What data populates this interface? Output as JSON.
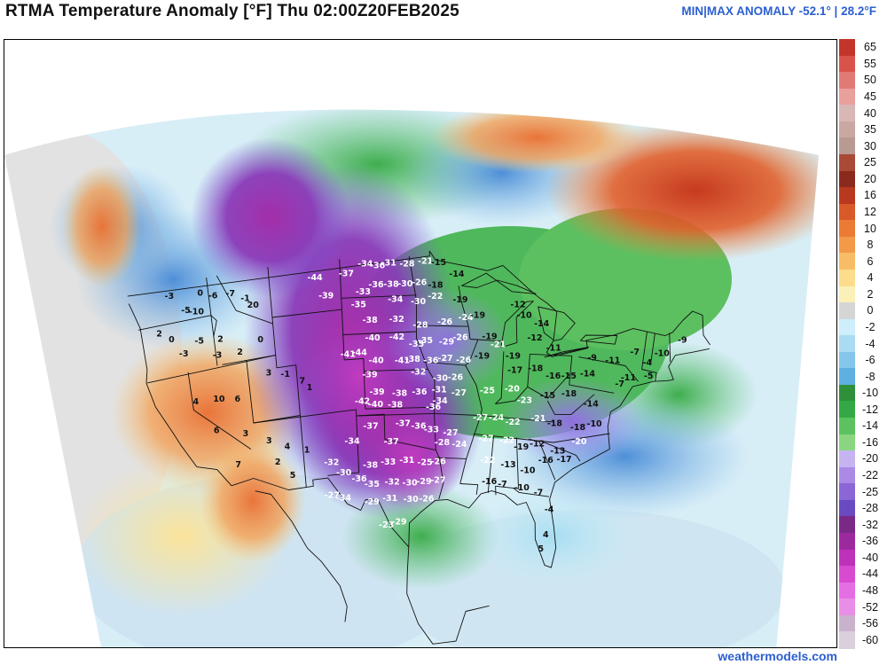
{
  "header": {
    "title": "RTMA Temperature Anomaly [°F]  Thu 02:00Z20FEB2025",
    "minmax": "MIN|MAX ANOMALY -52.1° | 28.2°F"
  },
  "footer": {
    "credit": "weathermodels.com"
  },
  "legend": {
    "labels": [
      "65",
      "55",
      "50",
      "45",
      "40",
      "35",
      "30",
      "25",
      "20",
      "16",
      "12",
      "10",
      "8",
      "6",
      "4",
      "2",
      "0",
      "-2",
      "-4",
      "-6",
      "-8",
      "-10",
      "-12",
      "-14",
      "-16",
      "-20",
      "-22",
      "-25",
      "-28",
      "-32",
      "-36",
      "-40",
      "-44",
      "-48",
      "-52",
      "-56",
      "-60"
    ],
    "colors": [
      "#c2352b",
      "#d9534a",
      "#e07a75",
      "#e8a09c",
      "#d9b7b4",
      "#c9a8a2",
      "#b99a92",
      "#a84a36",
      "#8a2a1d",
      "#b83820",
      "#d75a28",
      "#ec7a35",
      "#f29a48",
      "#f7bd66",
      "#fbdd8c",
      "#fbf0b8",
      "#d5d5d5",
      "#cdeefa",
      "#a9dcf2",
      "#85c7ea",
      "#5fb0df",
      "#2f8f3a",
      "#35a845",
      "#5cc25f",
      "#8ad680",
      "#c6b4f2",
      "#ab8ae6",
      "#8a66d6",
      "#6a4ac0",
      "#7a2a86",
      "#9c2a9e",
      "#bd32b8",
      "#d84ad0",
      "#e46ee2",
      "#e88ee6",
      "#c9b2cc",
      "#d9d0dc"
    ]
  },
  "stations": [
    {
      "v": "-34",
      "lon": -101.5,
      "lat": 48.3
    },
    {
      "v": "-36",
      "lon": -100.3,
      "lat": 48.1
    },
    {
      "v": "-31",
      "lon": -99.2,
      "lat": 48.3
    },
    {
      "v": "-28",
      "lon": -97.4,
      "lat": 48.2
    },
    {
      "v": "-21",
      "lon": -95.6,
      "lat": 48.4
    },
    {
      "v": "-15",
      "lon": -94.3,
      "lat": 48.3
    },
    {
      "v": "-44",
      "lon": -106.5,
      "lat": 47.5
    },
    {
      "v": "-37",
      "lon": -103.4,
      "lat": 47.6
    },
    {
      "v": "-36",
      "lon": -100.5,
      "lat": 46.6
    },
    {
      "v": "-38",
      "lon": -99.0,
      "lat": 46.6
    },
    {
      "v": "-30",
      "lon": -97.6,
      "lat": 46.6
    },
    {
      "v": "-26",
      "lon": -96.2,
      "lat": 46.7
    },
    {
      "v": "-18",
      "lon": -94.6,
      "lat": 46.5
    },
    {
      "v": "-14",
      "lon": -92.5,
      "lat": 47.4
    },
    {
      "v": "-39",
      "lon": -105.5,
      "lat": 46.0
    },
    {
      "v": "-33",
      "lon": -101.8,
      "lat": 46.1
    },
    {
      "v": "-35",
      "lon": -102.3,
      "lat": 45.1
    },
    {
      "v": "-34",
      "lon": -98.6,
      "lat": 45.4
    },
    {
      "v": "-30",
      "lon": -96.3,
      "lat": 45.2
    },
    {
      "v": "-22",
      "lon": -94.6,
      "lat": 45.6
    },
    {
      "v": "-19",
      "lon": -92.1,
      "lat": 45.4
    },
    {
      "v": "-38",
      "lon": -101.2,
      "lat": 43.8
    },
    {
      "v": "-32",
      "lon": -98.5,
      "lat": 43.8
    },
    {
      "v": "-28",
      "lon": -96.1,
      "lat": 43.3
    },
    {
      "v": "-26",
      "lon": -93.6,
      "lat": 43.6
    },
    {
      "v": "-24",
      "lon": -91.5,
      "lat": 44.0
    },
    {
      "v": "-40",
      "lon": -101.0,
      "lat": 42.4
    },
    {
      "v": "-42",
      "lon": -98.5,
      "lat": 42.4
    },
    {
      "v": "-35",
      "lon": -96.5,
      "lat": 41.8
    },
    {
      "v": "-35",
      "lon": -95.6,
      "lat": 42.1
    },
    {
      "v": "-29",
      "lon": -93.4,
      "lat": 42.0
    },
    {
      "v": "-26",
      "lon": -92.0,
      "lat": 42.4
    },
    {
      "v": "-41",
      "lon": -103.6,
      "lat": 41.2
    },
    {
      "v": "-44",
      "lon": -102.4,
      "lat": 41.3
    },
    {
      "v": "-40",
      "lon": -100.7,
      "lat": 40.6
    },
    {
      "v": "-41",
      "lon": -98.0,
      "lat": 40.5
    },
    {
      "v": "-38",
      "lon": -96.9,
      "lat": 40.6
    },
    {
      "v": "-36",
      "lon": -95.0,
      "lat": 40.5
    },
    {
      "v": "-27",
      "lon": -93.5,
      "lat": 40.7
    },
    {
      "v": "-26",
      "lon": -91.6,
      "lat": 40.6
    },
    {
      "v": "-39",
      "lon": -101.4,
      "lat": 39.5
    },
    {
      "v": "-32",
      "lon": -96.3,
      "lat": 39.6
    },
    {
      "v": "-30",
      "lon": -94.0,
      "lat": 39.1
    },
    {
      "v": "-26",
      "lon": -92.4,
      "lat": 39.2
    },
    {
      "v": "-39",
      "lon": -100.7,
      "lat": 38.1
    },
    {
      "v": "-38",
      "lon": -98.3,
      "lat": 37.9
    },
    {
      "v": "-36",
      "lon": -96.2,
      "lat": 38.0
    },
    {
      "v": "-31",
      "lon": -94.1,
      "lat": 38.2
    },
    {
      "v": "-27",
      "lon": -92.0,
      "lat": 38.0
    },
    {
      "v": "-42",
      "lon": -102.3,
      "lat": 37.4
    },
    {
      "v": "-40",
      "lon": -100.9,
      "lat": 37.1
    },
    {
      "v": "-38",
      "lon": -98.8,
      "lat": 37.0
    },
    {
      "v": "-36",
      "lon": -94.7,
      "lat": 36.8
    },
    {
      "v": "-34",
      "lon": -94.0,
      "lat": 37.3
    },
    {
      "v": "-37",
      "lon": -101.5,
      "lat": 35.4
    },
    {
      "v": "-37",
      "lon": -98.0,
      "lat": 35.5
    },
    {
      "v": "-36",
      "lon": -96.3,
      "lat": 35.3
    },
    {
      "v": "-33",
      "lon": -94.9,
      "lat": 35.0
    },
    {
      "v": "-27",
      "lon": -92.8,
      "lat": 34.8
    },
    {
      "v": "-34",
      "lon": -103.6,
      "lat": 34.3
    },
    {
      "v": "-37",
      "lon": -99.3,
      "lat": 34.1
    },
    {
      "v": "-28",
      "lon": -93.7,
      "lat": 34.0
    },
    {
      "v": "-24",
      "lon": -91.8,
      "lat": 33.9
    },
    {
      "v": "-32",
      "lon": -106.0,
      "lat": 32.8
    },
    {
      "v": "-38",
      "lon": -101.7,
      "lat": 32.3
    },
    {
      "v": "-33",
      "lon": -99.7,
      "lat": 32.5
    },
    {
      "v": "-31",
      "lon": -97.6,
      "lat": 32.6
    },
    {
      "v": "-25",
      "lon": -95.6,
      "lat": 32.4
    },
    {
      "v": "-26",
      "lon": -94.1,
      "lat": 32.5
    },
    {
      "v": "-30",
      "lon": -104.7,
      "lat": 31.9
    },
    {
      "v": "-36",
      "lon": -103.0,
      "lat": 31.3
    },
    {
      "v": "-35",
      "lon": -101.6,
      "lat": 30.8
    },
    {
      "v": "-32",
      "lon": -99.3,
      "lat": 30.9
    },
    {
      "v": "-30",
      "lon": -97.3,
      "lat": 30.8
    },
    {
      "v": "-29",
      "lon": -95.7,
      "lat": 30.9
    },
    {
      "v": "-27",
      "lon": -94.1,
      "lat": 31.0
    },
    {
      "v": "-27",
      "lon": -106.2,
      "lat": 30.2
    },
    {
      "v": "-34",
      "lon": -104.9,
      "lat": 29.9
    },
    {
      "v": "-29",
      "lon": -101.7,
      "lat": 29.4
    },
    {
      "v": "-31",
      "lon": -99.6,
      "lat": 29.6
    },
    {
      "v": "-30",
      "lon": -97.2,
      "lat": 29.5
    },
    {
      "v": "-26",
      "lon": -95.4,
      "lat": 29.5
    },
    {
      "v": "-23",
      "lon": -100.1,
      "lat": 27.5
    },
    {
      "v": "-29",
      "lon": -98.6,
      "lat": 27.7
    },
    {
      "v": "-19",
      "lon": -90.3,
      "lat": 44.2
    },
    {
      "v": "-12",
      "lon": -86.3,
      "lat": 45.3
    },
    {
      "v": "-14",
      "lon": -83.8,
      "lat": 44.0
    },
    {
      "v": "-10",
      "lon": -85.6,
      "lat": 44.5
    },
    {
      "v": "-19",
      "lon": -89.0,
      "lat": 42.6
    },
    {
      "v": "-21",
      "lon": -88.1,
      "lat": 42.0
    },
    {
      "v": "-19",
      "lon": -86.5,
      "lat": 41.2
    },
    {
      "v": "-12",
      "lon": -84.4,
      "lat": 42.8
    },
    {
      "v": "-11",
      "lon": -82.4,
      "lat": 42.2
    },
    {
      "v": "-19",
      "lon": -89.7,
      "lat": 41.0
    },
    {
      "v": "-17",
      "lon": -86.2,
      "lat": 40.1
    },
    {
      "v": "-18",
      "lon": -84.1,
      "lat": 40.4
    },
    {
      "v": "-16",
      "lon": -82.2,
      "lat": 40.0
    },
    {
      "v": "-15",
      "lon": -80.6,
      "lat": 40.2
    },
    {
      "v": "-14",
      "lon": -78.7,
      "lat": 40.6
    },
    {
      "v": "-25",
      "lon": -89.0,
      "lat": 38.3
    },
    {
      "v": "-20",
      "lon": -86.4,
      "lat": 38.6
    },
    {
      "v": "-23",
      "lon": -85.0,
      "lat": 37.8
    },
    {
      "v": "-15",
      "lon": -82.6,
      "lat": 38.4
    },
    {
      "v": "-18",
      "lon": -80.4,
      "lat": 38.8
    },
    {
      "v": "-14",
      "lon": -78.0,
      "lat": 38.3
    },
    {
      "v": "-27",
      "lon": -89.6,
      "lat": 36.1
    },
    {
      "v": "-24",
      "lon": -87.9,
      "lat": 36.2
    },
    {
      "v": "-22",
      "lon": -86.1,
      "lat": 36.0
    },
    {
      "v": "-21",
      "lon": -83.4,
      "lat": 36.5
    },
    {
      "v": "-18",
      "lon": -81.6,
      "lat": 36.3
    },
    {
      "v": "-18",
      "lon": -79.1,
      "lat": 36.3
    },
    {
      "v": "-10",
      "lon": -77.4,
      "lat": 36.8
    },
    {
      "v": "-27",
      "lon": -88.9,
      "lat": 34.5
    },
    {
      "v": "-22",
      "lon": -86.6,
      "lat": 34.5
    },
    {
      "v": "-19",
      "lon": -85.0,
      "lat": 34.1
    },
    {
      "v": "-12",
      "lon": -83.3,
      "lat": 34.5
    },
    {
      "v": "-13",
      "lon": -81.0,
      "lat": 34.2
    },
    {
      "v": "-20",
      "lon": -78.8,
      "lat": 35.2
    },
    {
      "v": "-22",
      "lon": -88.6,
      "lat": 32.8
    },
    {
      "v": "-13",
      "lon": -86.3,
      "lat": 32.6
    },
    {
      "v": "-10",
      "lon": -84.1,
      "lat": 32.3
    },
    {
      "v": "-16",
      "lon": -82.2,
      "lat": 33.3
    },
    {
      "v": "-17",
      "lon": -80.2,
      "lat": 33.6
    },
    {
      "v": "-16",
      "lon": -88.3,
      "lat": 31.1
    },
    {
      "v": "-7",
      "lon": -86.8,
      "lat": 31.0
    },
    {
      "v": "-10",
      "lon": -84.6,
      "lat": 30.9
    },
    {
      "v": "-7",
      "lon": -82.7,
      "lat": 30.7
    },
    {
      "v": "-4",
      "lon": -81.3,
      "lat": 29.5
    },
    {
      "v": "4",
      "lon": -81.4,
      "lat": 27.5
    },
    {
      "v": "5",
      "lon": -81.8,
      "lat": 26.3
    },
    {
      "v": "-9",
      "lon": -78.4,
      "lat": 41.9
    },
    {
      "v": "-11",
      "lon": -76.3,
      "lat": 42.0
    },
    {
      "v": "-7",
      "lon": -74.2,
      "lat": 43.0
    },
    {
      "v": "-4",
      "lon": -72.8,
      "lat": 42.4
    },
    {
      "v": "-10",
      "lon": -71.5,
      "lat": 43.4
    },
    {
      "v": "-9",
      "lon": -69.7,
      "lat": 44.8
    },
    {
      "v": "-7",
      "lon": -75.3,
      "lat": 40.3
    },
    {
      "v": "-11",
      "lon": -74.5,
      "lat": 40.9
    },
    {
      "v": "-5",
      "lon": -72.5,
      "lat": 41.4
    },
    {
      "v": "-3",
      "lon": -120.8,
      "lat": 48.0
    },
    {
      "v": "0",
      "lon": -117.8,
      "lat": 47.7
    },
    {
      "v": "-5",
      "lon": -119.4,
      "lat": 46.6
    },
    {
      "v": "-10",
      "lon": -118.4,
      "lat": 46.3
    },
    {
      "v": "-6",
      "lon": -116.6,
      "lat": 47.3
    },
    {
      "v": "-7",
      "lon": -114.9,
      "lat": 47.2
    },
    {
      "v": "20",
      "lon": -112.8,
      "lat": 46.0
    },
    {
      "v": "-1",
      "lon": -113.5,
      "lat": 46.6
    },
    {
      "v": "2",
      "lon": -122.3,
      "lat": 45.3
    },
    {
      "v": "0",
      "lon": -121.2,
      "lat": 44.6
    },
    {
      "v": "-5",
      "lon": -118.5,
      "lat": 44.0
    },
    {
      "v": "-3",
      "lon": -120.2,
      "lat": 43.3
    },
    {
      "v": "2",
      "lon": -116.4,
      "lat": 43.8
    },
    {
      "v": "-3",
      "lon": -116.9,
      "lat": 42.6
    },
    {
      "v": "0",
      "lon": -112.4,
      "lat": 43.2
    },
    {
      "v": "2",
      "lon": -114.6,
      "lat": 42.5
    },
    {
      "v": "4",
      "lon": -119.7,
      "lat": 39.4
    },
    {
      "v": "10",
      "lon": -117.3,
      "lat": 39.2
    },
    {
      "v": "6",
      "lon": -115.4,
      "lat": 38.9
    },
    {
      "v": "3",
      "lon": -111.9,
      "lat": 40.5
    },
    {
      "v": "-1",
      "lon": -110.2,
      "lat": 40.2
    },
    {
      "v": "7",
      "lon": -108.5,
      "lat": 39.5
    },
    {
      "v": "1",
      "lon": -107.8,
      "lat": 38.9
    },
    {
      "v": "6",
      "lon": -118.0,
      "lat": 36.8
    },
    {
      "v": "3",
      "lon": -115.0,
      "lat": 36.1
    },
    {
      "v": "3",
      "lon": -112.6,
      "lat": 35.2
    },
    {
      "v": "4",
      "lon": -110.7,
      "lat": 34.5
    },
    {
      "v": "1",
      "lon": -108.6,
      "lat": 34.0
    },
    {
      "v": "2",
      "lon": -111.9,
      "lat": 33.4
    },
    {
      "v": "5",
      "lon": -110.4,
      "lat": 32.2
    },
    {
      "v": "7",
      "lon": -116.2,
      "lat": 33.8
    }
  ]
}
